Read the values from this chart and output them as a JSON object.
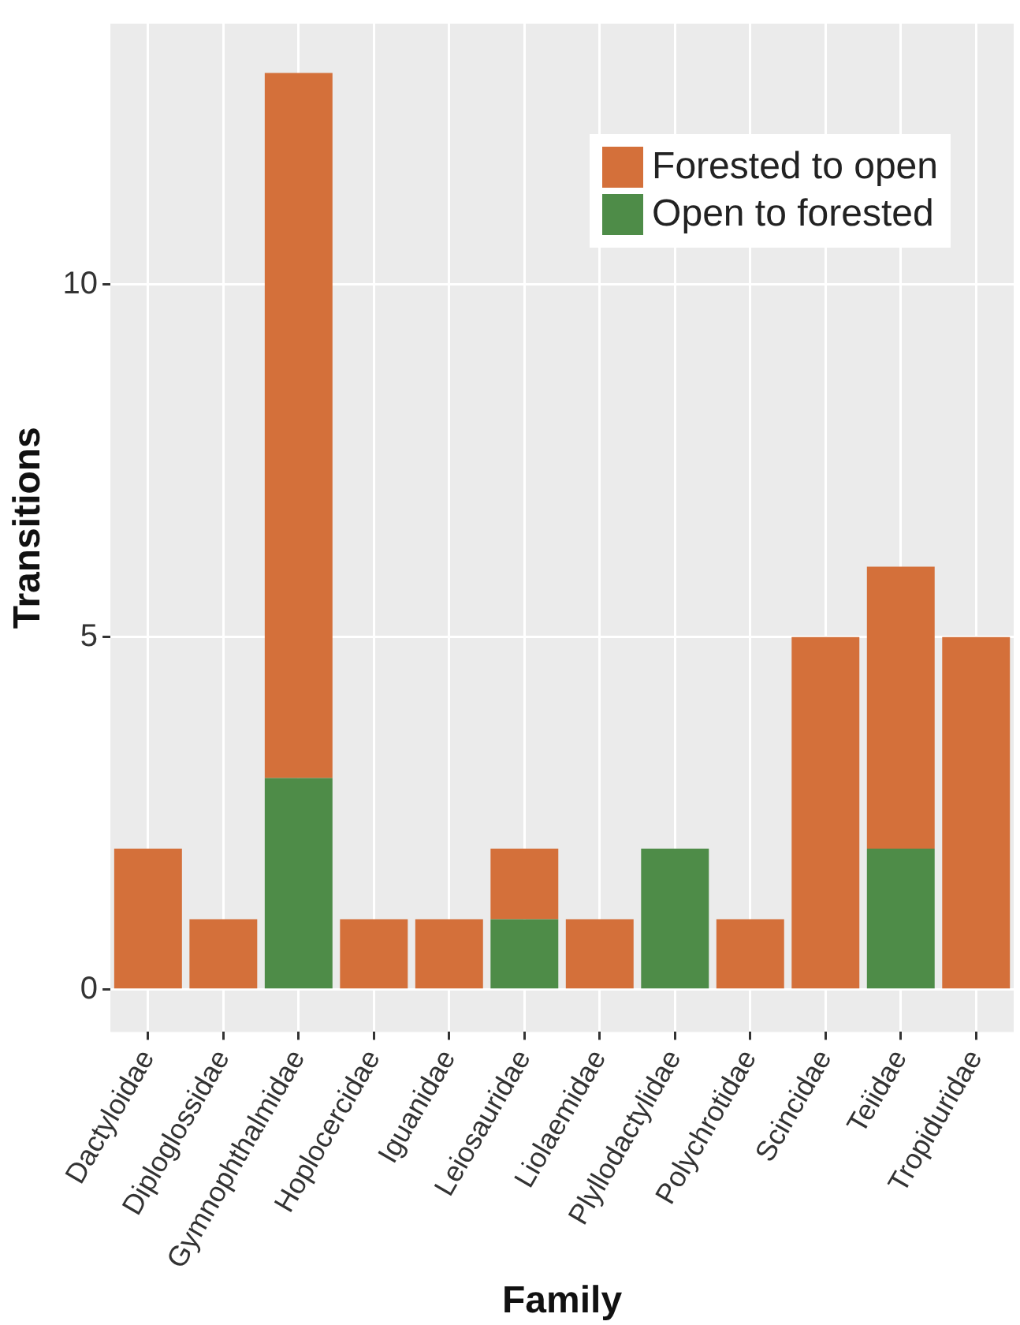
{
  "chart_data": {
    "type": "bar",
    "stacked": true,
    "xlabel": "Family",
    "ylabel": "Transitions",
    "categories": [
      "Dactyloidae",
      "Diploglossidae",
      "Gymnophthalmidae",
      "Hoplocercidae",
      "Iguanidae",
      "Leiosauridae",
      "Liolaemidae",
      "Plyllodactylidae",
      "Polychrotidae",
      "Scincidae",
      "Teiidae",
      "Tropiduridae"
    ],
    "series": [
      {
        "name": "Open to forested",
        "color": "#4e8c48",
        "values": [
          0,
          0,
          3,
          0,
          0,
          1,
          0,
          2,
          0,
          0,
          2,
          0
        ]
      },
      {
        "name": "Forested to open",
        "color": "#d4703a",
        "values": [
          2,
          1,
          10,
          1,
          1,
          1,
          1,
          0,
          1,
          5,
          4,
          5
        ]
      }
    ],
    "ylim": [
      -0.6,
      13.7
    ],
    "yticks": [
      0,
      5,
      10
    ],
    "grid": true,
    "legend": "top right"
  }
}
